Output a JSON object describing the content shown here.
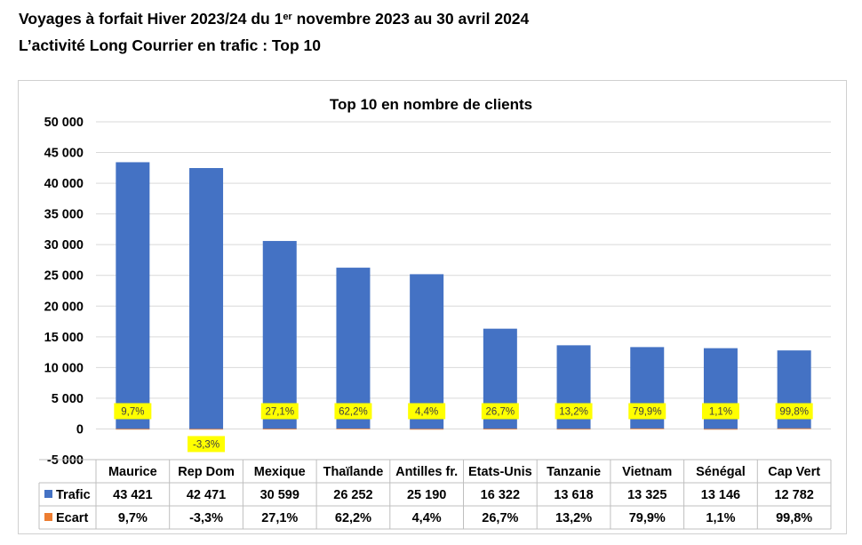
{
  "page": {
    "title_prefix": "Voyages à forfait Hiver 2023/24 du 1",
    "title_sup": "er",
    "title_suffix": " novembre 2023 au 30 avril 2024",
    "subtitle": "L’activité Long Courrier en trafic : Top 10"
  },
  "colors": {
    "trafic": "#4472C4",
    "ecart": "#ED7D31",
    "label_highlight": "#FFFF00",
    "grid": "#D9D9D9"
  },
  "chart_data": {
    "type": "bar",
    "title": "Top 10 en nombre de clients",
    "categories": [
      "Maurice",
      "Rep Dom",
      "Mexique",
      "Thaïlande",
      "Antilles fr.",
      "Etats-Unis",
      "Tanzanie",
      "Vietnam",
      "Sénégal",
      "Cap Vert"
    ],
    "ylim": [
      -5000,
      50000
    ],
    "yticks": [
      -5000,
      0,
      5000,
      10000,
      15000,
      20000,
      25000,
      30000,
      35000,
      40000,
      45000,
      50000
    ],
    "ytick_labels": [
      "-5 000",
      "0",
      "5 000",
      "10 000",
      "15 000",
      "20 000",
      "25 000",
      "30 000",
      "35 000",
      "40 000",
      "45 000",
      "50 000"
    ],
    "grid": true,
    "legend_placement": "data-table",
    "series": [
      {
        "name": "Trafic",
        "values": [
          43421,
          42471,
          30599,
          26252,
          25190,
          16322,
          13618,
          13325,
          13146,
          12782
        ],
        "value_labels": [
          "43 421",
          "42 471",
          "30 599",
          "26 252",
          "25 190",
          "16 322",
          "13 618",
          "13 325",
          "13 146",
          "12 782"
        ]
      },
      {
        "name": "Ecart",
        "values": [
          9.7,
          -3.3,
          27.1,
          62.2,
          4.4,
          26.7,
          13.2,
          79.9,
          1.1,
          99.8
        ],
        "value_labels": [
          "9,7%",
          "-3,3%",
          "27,1%",
          "62,2%",
          "4,4%",
          "26,7%",
          "13,2%",
          "79,9%",
          "1,1%",
          "99,8%"
        ]
      }
    ]
  }
}
